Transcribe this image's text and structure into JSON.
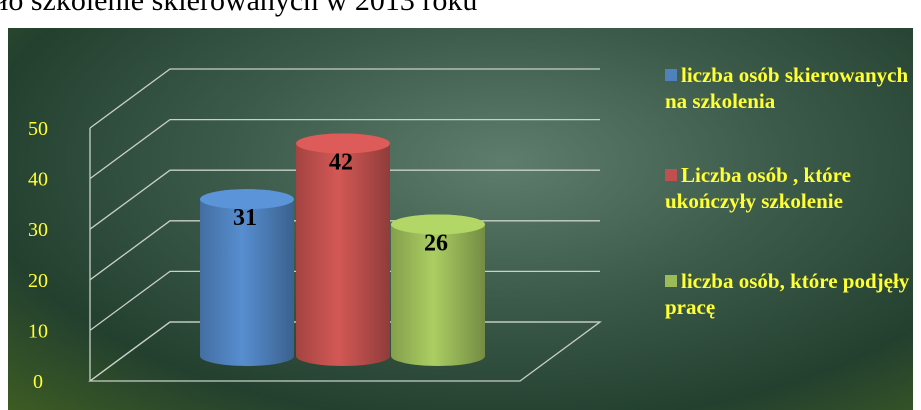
{
  "chart_data": {
    "type": "cylinder",
    "title": "ło szkolenie skierowanych w 2013 roku",
    "series": [
      {
        "name": "liczba osób skierowanych na szkolenia",
        "color": "#4f81bd",
        "values": [
          31
        ]
      },
      {
        "name": "Liczba osób , które ukończyły szkolenie",
        "color": "#c0504d",
        "values": [
          42
        ]
      },
      {
        "name": "liczba osób, które podjęły pracę",
        "color": "#9bbb59",
        "values": [
          26
        ]
      }
    ],
    "ylim": [
      0,
      50
    ],
    "yticks": [
      0,
      10,
      20,
      30,
      40,
      50
    ],
    "grid": true
  }
}
